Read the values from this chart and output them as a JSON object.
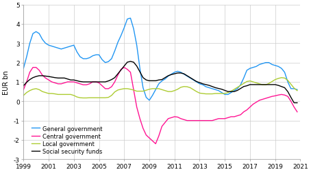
{
  "title": "",
  "ylabel": "EUR bn",
  "xlim": [
    1999,
    2021
  ],
  "ylim": [
    -3,
    5
  ],
  "yticks": [
    -3,
    -2,
    -1,
    0,
    1,
    2,
    3,
    4,
    5
  ],
  "xticks": [
    1999,
    2001,
    2003,
    2005,
    2007,
    2009,
    2011,
    2013,
    2015,
    2017,
    2019,
    2021
  ],
  "colors": {
    "general": "#2196F3",
    "central": "#FF1493",
    "local": "#ADCC32",
    "social": "#000000"
  },
  "legend": [
    {
      "label": "General government",
      "color": "#2196F3"
    },
    {
      "label": "Central government",
      "color": "#FF1493"
    },
    {
      "label": "Local government",
      "color": "#ADCC32"
    },
    {
      "label": "Social security funds",
      "color": "#000000"
    }
  ],
  "general_government": {
    "x": [
      1999,
      1999.25,
      1999.5,
      1999.75,
      2000,
      2000.25,
      2000.5,
      2000.75,
      2001,
      2001.25,
      2001.5,
      2001.75,
      2002,
      2002.25,
      2002.5,
      2002.75,
      2003,
      2003.25,
      2003.5,
      2003.75,
      2004,
      2004.25,
      2004.5,
      2004.75,
      2005,
      2005.25,
      2005.5,
      2005.75,
      2006,
      2006.25,
      2006.5,
      2006.75,
      2007,
      2007.25,
      2007.5,
      2007.75,
      2008,
      2008.25,
      2008.5,
      2008.75,
      2009,
      2009.25,
      2009.5,
      2009.75,
      2010,
      2010.25,
      2010.5,
      2010.75,
      2011,
      2011.25,
      2011.5,
      2011.75,
      2012,
      2012.25,
      2012.5,
      2012.75,
      2013,
      2013.25,
      2013.5,
      2013.75,
      2014,
      2014.25,
      2014.5,
      2014.75,
      2015,
      2015.25,
      2015.5,
      2015.75,
      2016,
      2016.25,
      2016.5,
      2016.75,
      2017,
      2017.25,
      2017.5,
      2017.75,
      2018,
      2018.25,
      2018.5,
      2018.75,
      2019,
      2019.25,
      2019.5,
      2019.75,
      2020,
      2020.25,
      2020.5,
      2020.75
    ],
    "y": [
      1.7,
      2.3,
      3.0,
      3.5,
      3.6,
      3.5,
      3.2,
      3.0,
      2.9,
      2.85,
      2.8,
      2.75,
      2.7,
      2.75,
      2.8,
      2.85,
      2.9,
      2.55,
      2.3,
      2.2,
      2.2,
      2.25,
      2.35,
      2.4,
      2.4,
      2.15,
      2.0,
      2.05,
      2.2,
      2.6,
      3.05,
      3.4,
      3.8,
      4.25,
      4.3,
      3.75,
      2.9,
      1.7,
      0.7,
      0.2,
      0.05,
      0.3,
      0.6,
      0.9,
      1.05,
      1.15,
      1.3,
      1.4,
      1.5,
      1.55,
      1.5,
      1.4,
      1.3,
      1.2,
      1.1,
      1.0,
      0.9,
      0.85,
      0.75,
      0.7,
      0.65,
      0.6,
      0.55,
      0.45,
      0.35,
      0.35,
      0.45,
      0.55,
      0.65,
      0.85,
      1.2,
      1.6,
      1.7,
      1.75,
      1.8,
      1.9,
      1.95,
      2.0,
      2.0,
      1.9,
      1.85,
      1.8,
      1.7,
      1.5,
      1.0,
      0.65,
      0.65,
      0.6
    ]
  },
  "central_government": {
    "x": [
      1999,
      1999.25,
      1999.5,
      1999.75,
      2000,
      2000.25,
      2000.5,
      2000.75,
      2001,
      2001.25,
      2001.5,
      2001.75,
      2002,
      2002.25,
      2002.5,
      2002.75,
      2003,
      2003.25,
      2003.5,
      2003.75,
      2004,
      2004.25,
      2004.5,
      2004.75,
      2005,
      2005.25,
      2005.5,
      2005.75,
      2006,
      2006.25,
      2006.5,
      2006.75,
      2007,
      2007.25,
      2007.5,
      2007.75,
      2008,
      2008.25,
      2008.5,
      2008.75,
      2009,
      2009.25,
      2009.5,
      2009.75,
      2010,
      2010.25,
      2010.5,
      2010.75,
      2011,
      2011.25,
      2011.5,
      2011.75,
      2012,
      2012.25,
      2012.5,
      2012.75,
      2013,
      2013.25,
      2013.5,
      2013.75,
      2014,
      2014.25,
      2014.5,
      2014.75,
      2015,
      2015.25,
      2015.5,
      2015.75,
      2016,
      2016.25,
      2016.5,
      2016.75,
      2017,
      2017.25,
      2017.5,
      2017.75,
      2018,
      2018.25,
      2018.5,
      2018.75,
      2019,
      2019.25,
      2019.5,
      2019.75,
      2020,
      2020.25,
      2020.5,
      2020.75
    ],
    "y": [
      0.6,
      1.0,
      1.5,
      1.75,
      1.75,
      1.6,
      1.35,
      1.2,
      1.1,
      1.0,
      0.95,
      0.9,
      0.9,
      0.95,
      1.0,
      1.0,
      1.0,
      0.95,
      0.9,
      0.85,
      0.85,
      0.9,
      1.0,
      1.0,
      0.95,
      0.8,
      0.65,
      0.65,
      0.75,
      1.0,
      1.35,
      1.65,
      1.75,
      1.65,
      1.5,
      0.6,
      -0.3,
      -0.9,
      -1.4,
      -1.75,
      -1.9,
      -2.05,
      -2.2,
      -1.8,
      -1.3,
      -1.1,
      -0.9,
      -0.85,
      -0.8,
      -0.82,
      -0.9,
      -0.95,
      -1.0,
      -1.0,
      -1.0,
      -1.0,
      -1.0,
      -1.0,
      -1.0,
      -1.0,
      -1.0,
      -0.95,
      -0.9,
      -0.9,
      -0.9,
      -0.85,
      -0.8,
      -0.8,
      -0.75,
      -0.7,
      -0.55,
      -0.45,
      -0.3,
      -0.15,
      -0.05,
      0.05,
      0.1,
      0.15,
      0.2,
      0.25,
      0.28,
      0.32,
      0.35,
      0.32,
      0.25,
      0.0,
      -0.3,
      -0.55
    ]
  },
  "local_government": {
    "x": [
      1999,
      1999.25,
      1999.5,
      1999.75,
      2000,
      2000.25,
      2000.5,
      2000.75,
      2001,
      2001.25,
      2001.5,
      2001.75,
      2002,
      2002.25,
      2002.5,
      2002.75,
      2003,
      2003.25,
      2003.5,
      2003.75,
      2004,
      2004.25,
      2004.5,
      2004.75,
      2005,
      2005.25,
      2005.5,
      2005.75,
      2006,
      2006.25,
      2006.5,
      2006.75,
      2007,
      2007.25,
      2007.5,
      2007.75,
      2008,
      2008.25,
      2008.5,
      2008.75,
      2009,
      2009.25,
      2009.5,
      2009.75,
      2010,
      2010.25,
      2010.5,
      2010.75,
      2011,
      2011.25,
      2011.5,
      2011.75,
      2012,
      2012.25,
      2012.5,
      2012.75,
      2013,
      2013.25,
      2013.5,
      2013.75,
      2014,
      2014.25,
      2014.5,
      2014.75,
      2015,
      2015.25,
      2015.5,
      2015.75,
      2016,
      2016.25,
      2016.5,
      2016.75,
      2017,
      2017.25,
      2017.5,
      2017.75,
      2018,
      2018.25,
      2018.5,
      2018.75,
      2019,
      2019.25,
      2019.5,
      2019.75,
      2020,
      2020.25,
      2020.5,
      2020.75
    ],
    "y": [
      0.3,
      0.45,
      0.55,
      0.62,
      0.65,
      0.6,
      0.5,
      0.45,
      0.4,
      0.4,
      0.38,
      0.35,
      0.35,
      0.35,
      0.35,
      0.35,
      0.3,
      0.22,
      0.18,
      0.17,
      0.17,
      0.18,
      0.18,
      0.18,
      0.18,
      0.18,
      0.18,
      0.2,
      0.3,
      0.48,
      0.58,
      0.62,
      0.65,
      0.65,
      0.62,
      0.58,
      0.52,
      0.52,
      0.52,
      0.57,
      0.62,
      0.65,
      0.65,
      0.65,
      0.6,
      0.55,
      0.5,
      0.5,
      0.55,
      0.62,
      0.72,
      0.76,
      0.75,
      0.7,
      0.6,
      0.5,
      0.42,
      0.4,
      0.38,
      0.38,
      0.38,
      0.4,
      0.4,
      0.4,
      0.4,
      0.45,
      0.52,
      0.62,
      0.72,
      0.82,
      0.92,
      1.02,
      1.05,
      1.0,
      0.95,
      0.9,
      0.85,
      0.85,
      0.92,
      1.02,
      1.12,
      1.18,
      1.22,
      1.2,
      1.08,
      0.88,
      0.68,
      0.55
    ]
  },
  "social_security": {
    "x": [
      1999,
      1999.25,
      1999.5,
      1999.75,
      2000,
      2000.25,
      2000.5,
      2000.75,
      2001,
      2001.25,
      2001.5,
      2001.75,
      2002,
      2002.25,
      2002.5,
      2002.75,
      2003,
      2003.25,
      2003.5,
      2003.75,
      2004,
      2004.25,
      2004.5,
      2004.75,
      2005,
      2005.25,
      2005.5,
      2005.75,
      2006,
      2006.25,
      2006.5,
      2006.75,
      2007,
      2007.25,
      2007.5,
      2007.75,
      2008,
      2008.25,
      2008.5,
      2008.75,
      2009,
      2009.25,
      2009.5,
      2009.75,
      2010,
      2010.25,
      2010.5,
      2010.75,
      2011,
      2011.25,
      2011.5,
      2011.75,
      2012,
      2012.25,
      2012.5,
      2012.75,
      2013,
      2013.25,
      2013.5,
      2013.75,
      2014,
      2014.25,
      2014.5,
      2014.75,
      2015,
      2015.25,
      2015.5,
      2015.75,
      2016,
      2016.25,
      2016.5,
      2016.75,
      2017,
      2017.25,
      2017.5,
      2017.75,
      2018,
      2018.25,
      2018.5,
      2018.75,
      2019,
      2019.25,
      2019.5,
      2019.75,
      2020,
      2020.25,
      2020.5,
      2020.75
    ],
    "y": [
      0.8,
      0.98,
      1.12,
      1.22,
      1.28,
      1.32,
      1.32,
      1.3,
      1.28,
      1.25,
      1.22,
      1.2,
      1.2,
      1.2,
      1.15,
      1.1,
      1.1,
      1.06,
      1.02,
      1.0,
      1.0,
      1.0,
      1.0,
      1.0,
      1.0,
      1.0,
      1.0,
      1.05,
      1.12,
      1.22,
      1.42,
      1.62,
      1.82,
      2.02,
      2.06,
      2.02,
      1.82,
      1.52,
      1.22,
      1.1,
      1.06,
      1.06,
      1.06,
      1.1,
      1.12,
      1.22,
      1.32,
      1.38,
      1.42,
      1.46,
      1.46,
      1.42,
      1.32,
      1.22,
      1.12,
      1.02,
      0.96,
      0.9,
      0.86,
      0.82,
      0.76,
      0.7,
      0.66,
      0.62,
      0.56,
      0.5,
      0.5,
      0.5,
      0.56,
      0.66,
      0.76,
      0.8,
      0.86,
      0.86,
      0.86,
      0.86,
      0.86,
      0.86,
      0.86,
      0.86,
      0.86,
      0.82,
      0.76,
      0.7,
      0.5,
      0.2,
      -0.08,
      -0.08
    ]
  },
  "figsize": [
    4.54,
    2.53
  ],
  "dpi": 100
}
